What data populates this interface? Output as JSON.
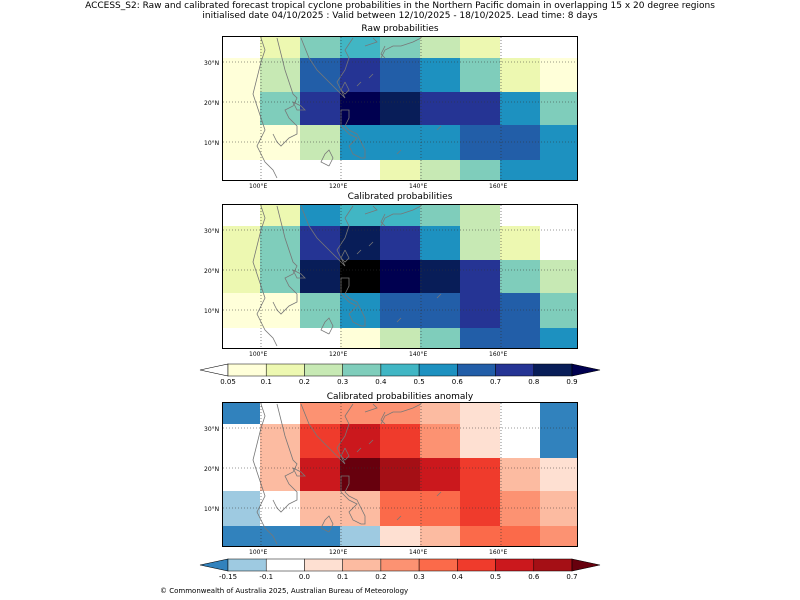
{
  "title_line1": "ACCESS_S2: Raw and calibrated forecast tropical cyclone probabilities in the Northern Pacific domain in overlapping 15 x 20 degree regions",
  "title_line2": "initialised date 04/10/2025 :  Valid between 12/10/2025 - 18/10/2025. Lead time: 8 days",
  "panels": [
    {
      "title": "Raw probabilities",
      "scale": "prob",
      "grid": [
        [
          -1,
          1,
          3,
          4,
          3,
          2,
          1,
          -1,
          -1
        ],
        [
          0,
          2,
          6,
          7,
          6,
          5,
          3,
          1,
          0
        ],
        [
          0,
          3,
          7,
          9,
          8,
          7,
          7,
          5,
          3
        ],
        [
          0,
          0,
          2,
          5,
          5,
          5,
          6,
          6,
          5
        ],
        [
          -1,
          -1,
          -1,
          -1,
          1,
          2,
          3,
          5,
          5
        ]
      ]
    },
    {
      "title": "Calibrated probabilities",
      "scale": "prob",
      "grid": [
        [
          -1,
          1,
          5,
          4,
          4,
          3,
          2,
          -1,
          -1
        ],
        [
          1,
          3,
          7,
          8,
          7,
          5,
          2,
          1,
          -1
        ],
        [
          1,
          3,
          8,
          10,
          9,
          8,
          7,
          3,
          2
        ],
        [
          0,
          0,
          3,
          5,
          6,
          6,
          7,
          6,
          3
        ],
        [
          -1,
          -1,
          -1,
          0,
          2,
          3,
          6,
          6,
          5
        ]
      ]
    },
    {
      "title": "Calibrated probabilities anomaly",
      "scale": "anom",
      "grid": [
        [
          0,
          2,
          5,
          5,
          5,
          4,
          3,
          2,
          0
        ],
        [
          2,
          4,
          7,
          8,
          7,
          5,
          3,
          2,
          0
        ],
        [
          2,
          4,
          8,
          10,
          9,
          8,
          7,
          4,
          3
        ],
        [
          1,
          2,
          4,
          4,
          6,
          6,
          7,
          5,
          4
        ],
        [
          0,
          0,
          0,
          1,
          3,
          4,
          6,
          6,
          5
        ]
      ]
    }
  ],
  "x_ticks": [
    "100°E",
    "120°E",
    "140°E",
    "160°E"
  ],
  "y_ticks": [
    "30°N",
    "20°N",
    "10°N"
  ],
  "colorbar_prob": {
    "labels": [
      "0.05",
      "0.1",
      "0.2",
      "0.3",
      "0.4",
      "0.5",
      "0.6",
      "0.7",
      "0.8",
      "0.9"
    ]
  },
  "colorbar_anom": {
    "labels": [
      "-0.15",
      "-0.1",
      "0.0",
      "0.1",
      "0.2",
      "0.3",
      "0.4",
      "0.5",
      "0.6",
      "0.7"
    ]
  },
  "colors": {
    "prob": [
      "#ffffd9",
      "#edf8b1",
      "#c7e9b4",
      "#7fcdbb",
      "#41b6c4",
      "#1d91c0",
      "#225ea8",
      "#253494",
      "#081d58",
      "#000050"
    ],
    "prob_under": "#ffffff",
    "prob_over": "#000050",
    "anom": [
      "#3182bd",
      "#9ecae1",
      "#ffffff",
      "#fee0d2",
      "#fcbba1",
      "#fc9272",
      "#fb6a4a",
      "#ef3b2c",
      "#cb181d",
      "#a50f15",
      "#67000d"
    ]
  },
  "copyright": "© Commonwealth of Australia 2025, Australian Bureau of Meteorology"
}
